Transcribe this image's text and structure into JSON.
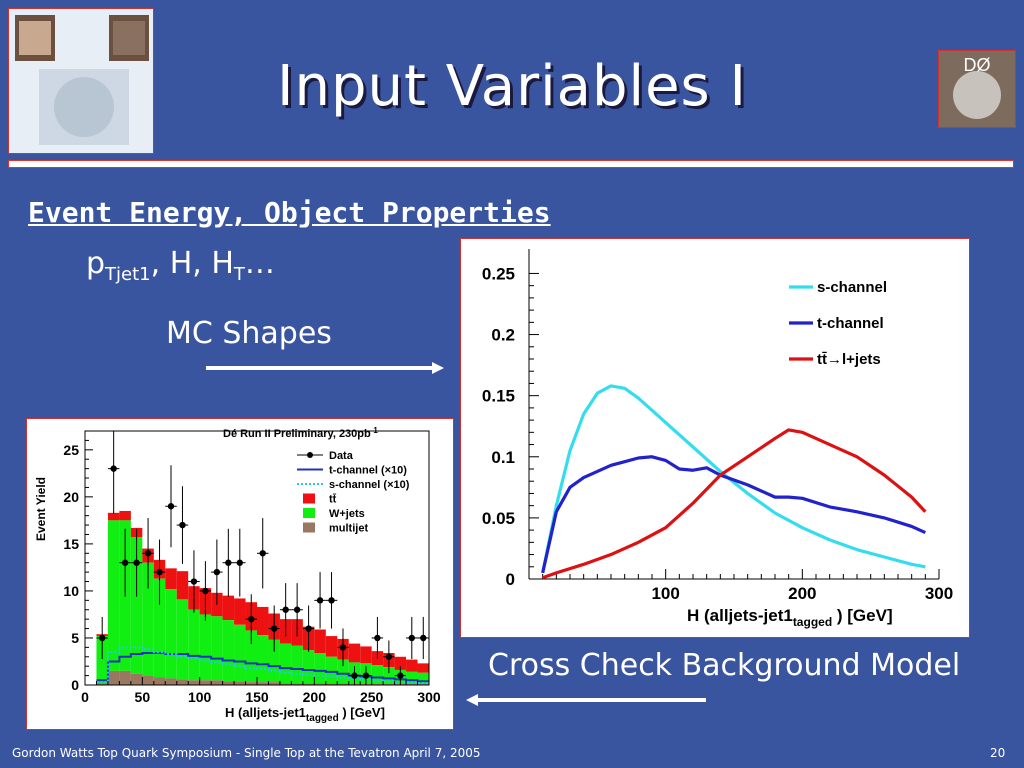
{
  "slide": {
    "title": "Input Variables I",
    "logo_text": "DØ",
    "heading": "Event Energy, Object Properties",
    "vars_p": "p",
    "vars_p_sub": "Tjet1",
    "vars_rest": ", H, H",
    "vars_ht_sub": "T",
    "vars_tail": "…",
    "mc_label": "MC Shapes",
    "cross_label": "Cross Check Background Model",
    "footer": "Gordon Watts Top Quark Symposium - Single Top at the Tevatron April 7, 2005",
    "page": "20"
  },
  "chart_data": [
    {
      "type": "line",
      "xlabel": "H (alljets-jet1tagged ) [GeV]",
      "xlabel_main": "H (alljets-jet1",
      "xlabel_sub": "tagged",
      "xlabel_end": " ) [GeV]",
      "xlim": [
        0,
        300
      ],
      "ylim": [
        0,
        0.27
      ],
      "xticks": [
        100,
        200,
        300
      ],
      "yticks": [
        0,
        0.05,
        0.1,
        0.15,
        0.2,
        0.25
      ],
      "ytick_labels": [
        "0",
        "0.05",
        "0.1",
        "0.15",
        "0.2",
        "0.25"
      ],
      "legend_position": "top-right",
      "series": [
        {
          "name": "s-channel",
          "color": "#33ddee",
          "x": [
            10,
            20,
            30,
            40,
            50,
            60,
            70,
            80,
            90,
            100,
            120,
            140,
            160,
            180,
            200,
            220,
            240,
            260,
            280,
            290
          ],
          "y": [
            0.005,
            0.06,
            0.105,
            0.135,
            0.152,
            0.158,
            0.156,
            0.148,
            0.138,
            0.128,
            0.108,
            0.088,
            0.07,
            0.054,
            0.042,
            0.032,
            0.024,
            0.018,
            0.012,
            0.01
          ]
        },
        {
          "name": "t-channel",
          "color": "#2222cc",
          "x": [
            10,
            20,
            30,
            40,
            50,
            60,
            70,
            80,
            90,
            100,
            110,
            120,
            130,
            140,
            160,
            180,
            190,
            200,
            220,
            240,
            260,
            280,
            290
          ],
          "y": [
            0.005,
            0.055,
            0.075,
            0.083,
            0.088,
            0.093,
            0.096,
            0.099,
            0.1,
            0.097,
            0.09,
            0.089,
            0.091,
            0.085,
            0.077,
            0.067,
            0.067,
            0.066,
            0.059,
            0.055,
            0.05,
            0.043,
            0.038
          ]
        },
        {
          "name": "tt̄→l+jets",
          "color": "#dd1111",
          "x": [
            10,
            20,
            40,
            60,
            80,
            100,
            120,
            140,
            160,
            180,
            190,
            200,
            220,
            240,
            260,
            280,
            290
          ],
          "y": [
            0.001,
            0.005,
            0.012,
            0.02,
            0.03,
            0.042,
            0.062,
            0.085,
            0.1,
            0.115,
            0.122,
            0.12,
            0.11,
            0.1,
            0.085,
            0.067,
            0.055
          ]
        }
      ]
    },
    {
      "type": "bar",
      "title": "Dé Run II Preliminary, 230pb",
      "title_sup": "-1",
      "ylabel": "Event Yield",
      "xlabel_main": "H (alljets-jet1",
      "xlabel_sub": "tagged",
      "xlabel_end": " ) [GeV]",
      "xlim": [
        0,
        300
      ],
      "ylim": [
        0,
        27
      ],
      "xticks": [
        0,
        50,
        100,
        150,
        200,
        250,
        300
      ],
      "yticks": [
        0,
        5,
        10,
        15,
        20,
        25
      ],
      "bin_width": 10,
      "bin_starts": [
        10,
        20,
        30,
        40,
        50,
        60,
        70,
        80,
        90,
        100,
        110,
        120,
        130,
        140,
        150,
        160,
        170,
        180,
        190,
        200,
        210,
        220,
        230,
        240,
        250,
        260,
        270,
        280,
        290
      ],
      "multijet": [
        0.2,
        1.5,
        1.5,
        1.2,
        1.0,
        0.8,
        0.7,
        0.6,
        0.5,
        0.5,
        0.5,
        0.4,
        0.4,
        0.3,
        0.3,
        0.3,
        0.2,
        0.2,
        0.2,
        0.2,
        0.2,
        0.2,
        0.1,
        0.1,
        0.1,
        0.1,
        0.1,
        0.1,
        0.1
      ],
      "wjets": [
        5.0,
        16.0,
        16.0,
        14.5,
        12.0,
        10.5,
        9.5,
        8.5,
        7.5,
        7.0,
        6.8,
        6.5,
        6.0,
        5.5,
        5.0,
        4.5,
        4.2,
        4.0,
        3.5,
        3.2,
        2.8,
        2.5,
        2.3,
        2.2,
        2.0,
        1.8,
        1.5,
        1.3,
        1.2
      ],
      "ttbar": [
        0.2,
        0.8,
        1.0,
        1.0,
        1.5,
        2.0,
        2.2,
        3.0,
        2.5,
        2.8,
        2.5,
        2.6,
        2.8,
        3.0,
        3.0,
        2.8,
        2.6,
        2.8,
        2.5,
        2.5,
        2.2,
        2.2,
        2.0,
        1.8,
        1.5,
        1.5,
        1.4,
        1.3,
        1.0
      ],
      "tchannel_x10": [
        0.5,
        2.5,
        3.0,
        3.3,
        3.4,
        3.4,
        3.3,
        3.3,
        3.1,
        3.0,
        2.8,
        2.6,
        2.5,
        2.3,
        2.2,
        2.0,
        1.8,
        1.7,
        1.6,
        1.5,
        1.4,
        1.2,
        1.0,
        0.9,
        0.8,
        0.7,
        0.6,
        0.5,
        0.4
      ],
      "schannel_x10": [
        0.3,
        3.5,
        4.0,
        4.0,
        3.8,
        3.5,
        3.3,
        3.0,
        2.8,
        2.6,
        2.4,
        2.2,
        2.0,
        1.8,
        1.7,
        1.5,
        1.3,
        1.2,
        1.1,
        1.0,
        0.9,
        0.8,
        0.7,
        0.6,
        0.5,
        0.4,
        0.3,
        0.3,
        0.2
      ],
      "data": {
        "x": [
          15,
          25,
          35,
          45,
          55,
          65,
          75,
          85,
          95,
          105,
          115,
          125,
          135,
          145,
          155,
          165,
          175,
          185,
          195,
          205,
          215,
          225,
          235,
          245,
          255,
          265,
          275,
          285,
          295
        ],
        "y": [
          5,
          23,
          13,
          13,
          14,
          12,
          19,
          17,
          11,
          10,
          12,
          13,
          13,
          7,
          14,
          6,
          8,
          8,
          6,
          9,
          9,
          4,
          1,
          1,
          5,
          3,
          1,
          5,
          5
        ]
      },
      "legend_position": "top-right",
      "legend": [
        {
          "label": "Data",
          "kind": "marker"
        },
        {
          "label": "t-channel (×10)",
          "kind": "line",
          "color": "#2233bb"
        },
        {
          "label": "s-channel (×10)",
          "kind": "dotted",
          "color": "#22ccdd"
        },
        {
          "label": "tt̄",
          "kind": "box",
          "color": "#ee1111"
        },
        {
          "label": "W+jets",
          "kind": "box",
          "color": "#11ee11"
        },
        {
          "label": "multijet",
          "kind": "box",
          "color": "#9a7760"
        }
      ]
    }
  ]
}
